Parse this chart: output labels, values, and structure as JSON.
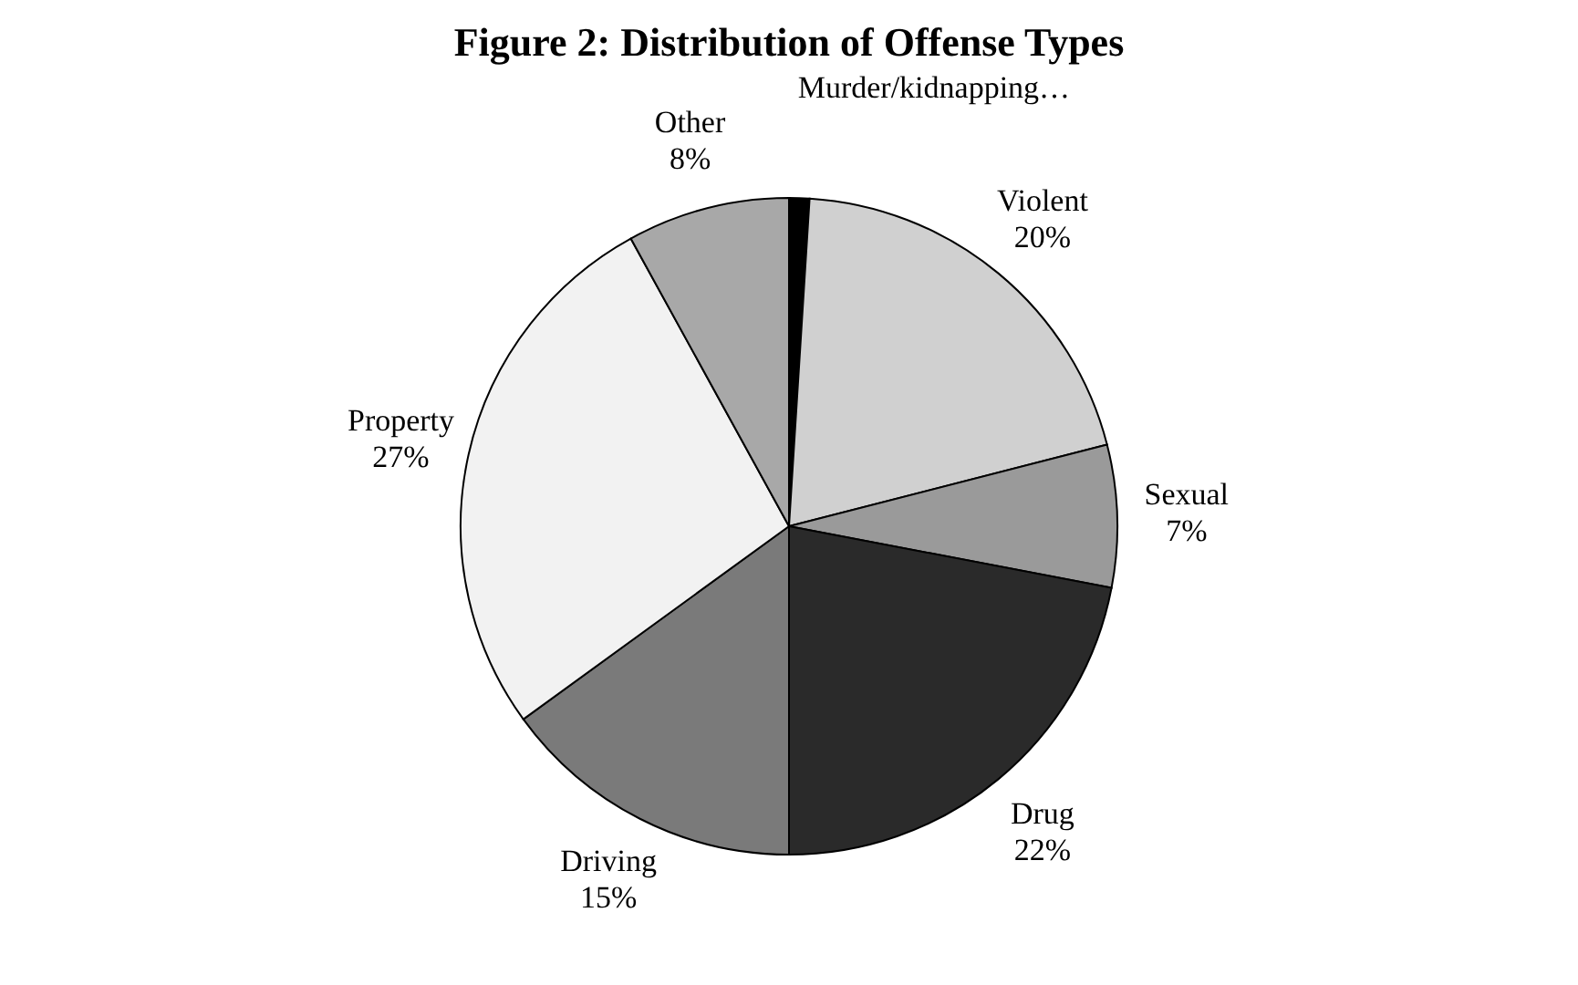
{
  "chart_data": {
    "type": "pie",
    "title": "Figure 2: Distribution of Offense Types",
    "categories": [
      "Murder/kidnapping…",
      "Violent",
      "Sexual",
      "Drug",
      "Driving",
      "Property",
      "Other"
    ],
    "values": [
      1,
      20,
      7,
      22,
      15,
      27,
      8
    ],
    "value_labels": [
      null,
      "20%",
      "7%",
      "22%",
      "15%",
      "27%",
      "8%"
    ],
    "colors": [
      "#000000",
      "#d0d0d0",
      "#9a9a9a",
      "#2a2a2a",
      "#7a7a7a",
      "#f2f2f2",
      "#a8a8a8"
    ],
    "legend": false
  }
}
